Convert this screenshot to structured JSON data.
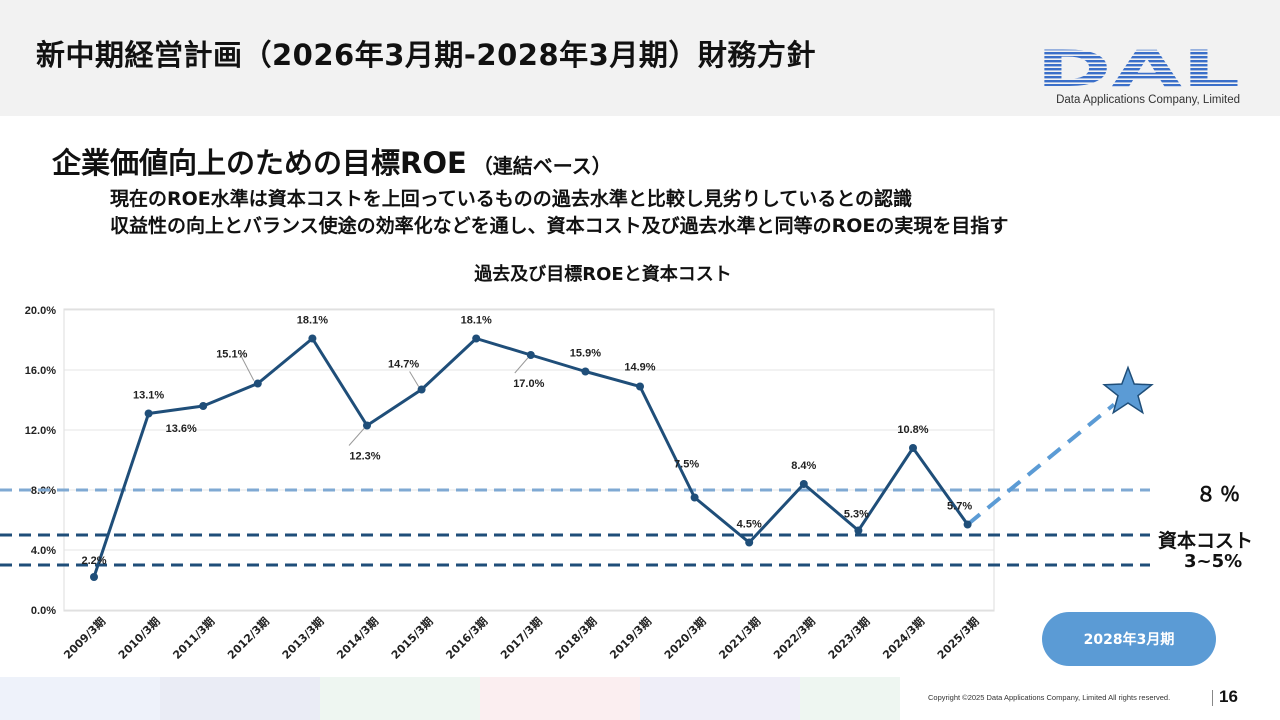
{
  "header": {
    "title": "新中期経営計画（2026年3月期-2028年3月期）財務方針",
    "logo_text": "DAL",
    "logo_subtitle": "Data Applications Company, Limited"
  },
  "section": {
    "title": "企業価値向上のための目標ROE",
    "subtitle": "（連結ベース）"
  },
  "messages": [
    "現在のROE水準は資本コストを上回っているものの過去水準と比較し見劣りしているとの認識",
    "収益性の向上とバランス使途の効率化などを通し、資本コスト及び過去水準と同等のROEの実現を目指す"
  ],
  "chart_data": {
    "type": "line",
    "title": "過去及び目標ROEと資本コスト",
    "categories": [
      "2009/3期",
      "2010/3期",
      "2011/3期",
      "2012/3期",
      "2013/3期",
      "2014/3期",
      "2015/3期",
      "2016/3期",
      "2017/3期",
      "2018/3期",
      "2019/3期",
      "2020/3期",
      "2021/3期",
      "2022/3期",
      "2023/3期",
      "2024/3期",
      "2025/3期"
    ],
    "series": [
      {
        "values": [
          2.2,
          13.1,
          13.6,
          15.1,
          18.1,
          12.3,
          14.7,
          18.1,
          17.0,
          15.9,
          14.9,
          7.5,
          4.5,
          8.4,
          5.3,
          10.8,
          5.7
        ]
      }
    ],
    "data_labels": [
      "2.2%",
      "13.1%",
      "13.6%",
      "15.1%",
      "18.1%",
      "12.3%",
      "14.7%",
      "18.1%",
      "17.0%",
      "15.9%",
      "14.9%",
      "7.5%",
      "4.5%",
      "8.4%",
      "5.3%",
      "10.8%",
      "5.7%"
    ],
    "ylim": [
      0,
      20
    ],
    "yticks": [
      0,
      4,
      8,
      12,
      16,
      20
    ],
    "ytick_labels": [
      "0.0%",
      "4.0%",
      "8.0%",
      "12.0%",
      "16.0%",
      "20.0%"
    ],
    "grid": true,
    "reference_lines": [
      {
        "value": 8,
        "color": "#7fa9d3"
      },
      {
        "value": 5,
        "color": "#1f4e79"
      },
      {
        "value": 3,
        "color": "#1f4e79"
      }
    ],
    "target_marker": "star",
    "line_color": "#1f4e79",
    "target_color": "#5b9bd5"
  },
  "annotations": {
    "target_roe": "８％",
    "capital_cost_label": "資本コスト",
    "capital_cost_range": "3~5%",
    "target_period": "2028年3月期"
  },
  "footer": {
    "copyright": "Copyright ©2025 Data Applications Company, Limited All rights reserved.",
    "page": "16"
  },
  "colors": {
    "header_band": "#f2f2f2",
    "accent_dark": "#1f4e79",
    "accent_light": "#5b9bd5",
    "logo_blue": "#3a6fc9"
  }
}
